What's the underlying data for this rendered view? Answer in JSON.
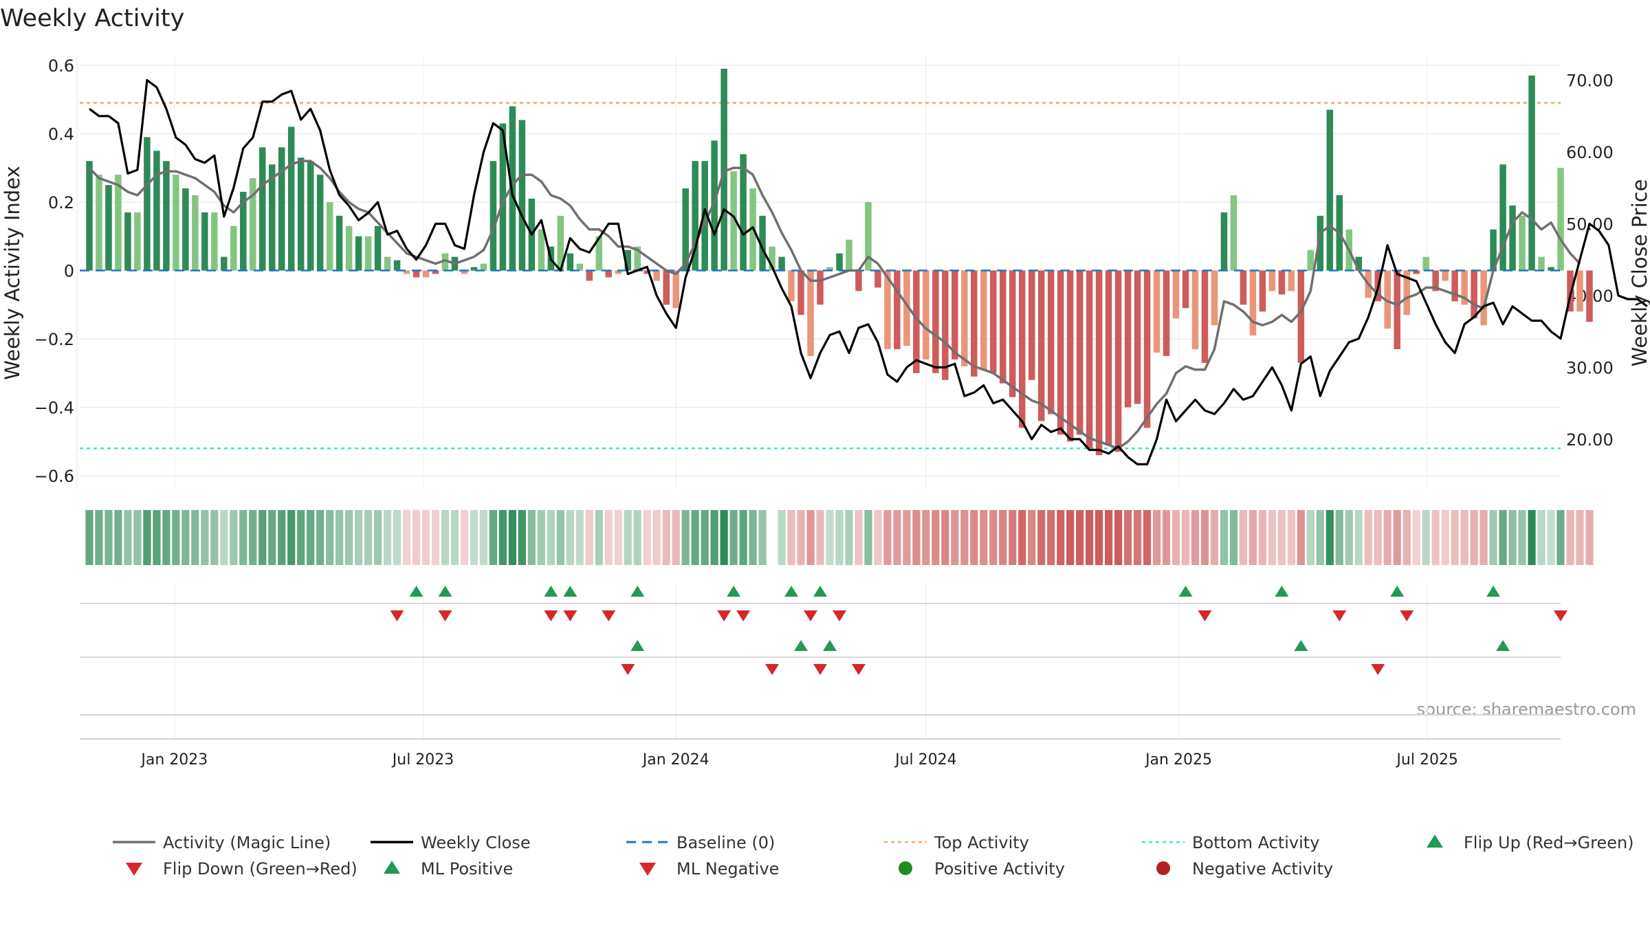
{
  "chart_data": {
    "type": "bar",
    "title": "Weekly Activity",
    "ylabel": "Weekly Activity Index",
    "y2label": "Weekly Close Price",
    "ylim": [
      -0.64,
      0.63
    ],
    "y2lim": [
      13.0,
      73.5
    ],
    "xlim": [
      "2022-10-24",
      "2025-10-06"
    ],
    "y_ticks": [
      {
        "v": 0.6,
        "label": "0.6"
      },
      {
        "v": 0.4,
        "label": "0.4"
      },
      {
        "v": 0.2,
        "label": "0.2"
      },
      {
        "v": 0,
        "label": "0"
      },
      {
        "v": -0.2,
        "label": "−0.2"
      },
      {
        "v": -0.4,
        "label": "−0.4"
      },
      {
        "v": -0.6,
        "label": "−0.6"
      }
    ],
    "y2_ticks": [
      {
        "v": 70,
        "label": "70.00"
      },
      {
        "v": 60,
        "label": "60.00"
      },
      {
        "v": 50,
        "label": "50.00"
      },
      {
        "v": 40,
        "label": "40.00"
      },
      {
        "v": 30,
        "label": "30.00"
      },
      {
        "v": 20,
        "label": "20.00"
      }
    ],
    "x_ticks": [
      {
        "date": "2023-01-01",
        "label": "Jan 2023"
      },
      {
        "date": "2023-07-01",
        "label": "Jul 2023"
      },
      {
        "date": "2024-01-01",
        "label": "Jan 2024"
      },
      {
        "date": "2024-07-01",
        "label": "Jul 2024"
      },
      {
        "date": "2025-01-01",
        "label": "Jan 2025"
      },
      {
        "date": "2025-07-01",
        "label": "Jul 2025"
      }
    ],
    "start_date": "2022-10-31",
    "week_days": 7,
    "activity": [
      0.32,
      0.28,
      0.25,
      0.28,
      0.17,
      0.17,
      0.39,
      0.35,
      0.32,
      0.28,
      0.24,
      0.22,
      0.17,
      0.17,
      0.04,
      0.13,
      0.23,
      0.27,
      0.36,
      0.31,
      0.36,
      0.42,
      0.33,
      0.32,
      0.28,
      0.2,
      0.16,
      0.13,
      0.1,
      0.1,
      0.13,
      0.04,
      0.03,
      -0.01,
      -0.02,
      -0.02,
      -0.01,
      0.05,
      0.04,
      -0.01,
      0.01,
      0.02,
      0.32,
      0.43,
      0.48,
      0.44,
      0.21,
      0.12,
      0.07,
      0.16,
      0.05,
      0.02,
      -0.03,
      0.1,
      -0.02,
      -0.01,
      0.06,
      0.07,
      -0.01,
      -0.03,
      -0.1,
      -0.11,
      0.24,
      0.32,
      0.32,
      0.38,
      0.59,
      0.29,
      0.34,
      0.24,
      0.16,
      0.07,
      0.04,
      -0.09,
      -0.13,
      -0.25,
      -0.1,
      0.01,
      0.05,
      0.09,
      -0.06,
      0.2,
      -0.05,
      -0.23,
      -0.23,
      -0.22,
      -0.3,
      -0.26,
      -0.3,
      -0.32,
      -0.26,
      -0.28,
      -0.31,
      -0.29,
      -0.3,
      -0.33,
      -0.37,
      -0.46,
      -0.32,
      -0.44,
      -0.42,
      -0.48,
      -0.5,
      -0.48,
      -0.52,
      -0.54,
      -0.51,
      -0.53,
      -0.4,
      -0.39,
      -0.46,
      -0.24,
      -0.25,
      -0.14,
      -0.11,
      -0.23,
      -0.27,
      -0.16,
      0.17,
      0.22,
      -0.1,
      -0.19,
      -0.12,
      -0.06,
      -0.07,
      -0.06,
      -0.27,
      0.06,
      0.16,
      0.47,
      0.22,
      0.12,
      0.04,
      -0.08,
      -0.09,
      -0.17,
      -0.23,
      -0.13,
      -0.01,
      0.04,
      -0.06,
      -0.03,
      -0.09,
      -0.1,
      -0.14,
      -0.16,
      0.12,
      0.31,
      0.19,
      0.16,
      0.57,
      0.04,
      0.01,
      0.3,
      -0.12,
      -0.12,
      -0.15
    ],
    "activity_line": [
      0.3,
      0.27,
      0.26,
      0.25,
      0.23,
      0.22,
      0.25,
      0.28,
      0.29,
      0.29,
      0.28,
      0.27,
      0.25,
      0.23,
      0.19,
      0.17,
      0.2,
      0.22,
      0.25,
      0.27,
      0.29,
      0.31,
      0.32,
      0.32,
      0.3,
      0.27,
      0.23,
      0.2,
      0.18,
      0.17,
      0.14,
      0.11,
      0.08,
      0.05,
      0.04,
      0.03,
      0.02,
      0.03,
      0.02,
      0.03,
      0.04,
      0.06,
      0.12,
      0.2,
      0.25,
      0.28,
      0.28,
      0.26,
      0.22,
      0.21,
      0.19,
      0.15,
      0.12,
      0.12,
      0.1,
      0.07,
      0.07,
      0.06,
      0.04,
      0.02,
      0.0,
      -0.01,
      0.02,
      0.08,
      0.14,
      0.2,
      0.29,
      0.3,
      0.3,
      0.28,
      0.22,
      0.17,
      0.11,
      0.06,
      0.0,
      -0.03,
      -0.03,
      -0.02,
      -0.01,
      0.0,
      0.0,
      0.04,
      0.02,
      -0.02,
      -0.06,
      -0.1,
      -0.14,
      -0.17,
      -0.19,
      -0.21,
      -0.24,
      -0.26,
      -0.28,
      -0.29,
      -0.3,
      -0.32,
      -0.34,
      -0.36,
      -0.38,
      -0.39,
      -0.41,
      -0.43,
      -0.45,
      -0.47,
      -0.49,
      -0.5,
      -0.51,
      -0.52,
      -0.5,
      -0.47,
      -0.43,
      -0.39,
      -0.36,
      -0.3,
      -0.28,
      -0.29,
      -0.29,
      -0.23,
      -0.09,
      -0.1,
      -0.12,
      -0.15,
      -0.16,
      -0.15,
      -0.13,
      -0.15,
      -0.12,
      -0.06,
      0.11,
      0.13,
      0.11,
      0.06,
      0.0,
      -0.04,
      -0.07,
      -0.09,
      -0.1,
      -0.08,
      -0.07,
      -0.05,
      -0.05,
      -0.06,
      -0.07,
      -0.08,
      -0.1,
      -0.11,
      0.0,
      0.07,
      0.14,
      0.17,
      0.15,
      0.12,
      0.14,
      0.09,
      0.05,
      0.02
    ],
    "close": [
      66.0,
      65.0,
      65.0,
      64.0,
      57.0,
      57.5,
      70.0,
      69.0,
      66.0,
      62.0,
      61.0,
      59.0,
      58.5,
      59.5,
      51.0,
      55.0,
      60.5,
      62.0,
      67.0,
      67.0,
      68.0,
      68.5,
      64.5,
      66.0,
      63.0,
      57.5,
      54.0,
      52.5,
      50.5,
      51.5,
      53.0,
      48.5,
      49.0,
      46.5,
      45.0,
      47.0,
      50.0,
      50.0,
      47.0,
      46.5,
      54.0,
      60.0,
      64.0,
      63.0,
      54.0,
      51.0,
      48.5,
      50.5,
      45.0,
      43.5,
      48.0,
      46.5,
      46.0,
      48.0,
      50.0,
      50.0,
      43.0,
      43.5,
      44.0,
      40.0,
      37.5,
      35.5,
      42.5,
      46.5,
      52.0,
      48.5,
      52.0,
      51.0,
      48.5,
      49.5,
      46.5,
      44.0,
      41.0,
      38.5,
      32.0,
      28.5,
      32.0,
      34.5,
      35.0,
      32.0,
      35.5,
      36.0,
      33.5,
      29.0,
      28.0,
      30.0,
      31.0,
      30.5,
      30.0,
      30.0,
      30.5,
      26.0,
      26.5,
      27.5,
      25.0,
      25.5,
      24.0,
      22.5,
      20.0,
      22.0,
      21.0,
      21.5,
      20.0,
      20.0,
      18.5,
      18.5,
      18.0,
      19.0,
      17.5,
      16.5,
      16.5,
      20.0,
      25.5,
      22.5,
      24.0,
      25.5,
      24.0,
      23.5,
      25.0,
      27.0,
      25.5,
      26.0,
      28.0,
      30.0,
      27.5,
      24.0,
      30.5,
      31.5,
      26.0,
      29.5,
      31.5,
      33.5,
      34.0,
      37.0,
      41.0,
      47.0,
      43.0,
      42.5,
      42.0,
      39.0,
      36.0,
      33.5,
      32.0,
      36.0,
      37.0,
      38.5,
      39.0,
      36.0,
      38.5,
      37.5,
      36.5,
      36.5,
      35.0,
      34.0,
      40.0,
      45.0,
      50.0,
      49.0,
      47.0,
      40.0,
      39.5,
      39.5,
      38.5
    ],
    "barcode_gap_weeks": [
      71
    ],
    "baseline": 0,
    "top_activity": 0.49,
    "bottom_activity": -0.52,
    "flip_up_weeks": [
      34,
      37,
      48,
      50,
      57,
      67,
      73,
      76,
      114,
      124,
      136,
      146
    ],
    "flip_down_weeks": [
      32,
      37,
      48,
      50,
      54,
      66,
      68,
      75,
      78,
      116,
      130,
      137,
      153
    ],
    "ml_positive_weeks": [
      57,
      74,
      77,
      126,
      147
    ],
    "ml_negative_weeks": [
      56,
      71,
      76,
      80,
      134
    ],
    "source_note": "source: sharemaestro.com",
    "colors": {
      "pos_strong": "#2e8b57",
      "pos_weak": "#84c584",
      "neg_strong": "#cd5c5c",
      "neg_weak": "#e9967a",
      "activity_line": "#707070",
      "close_line": "#000000",
      "baseline": "#1f77b4",
      "top": "#f4a460",
      "bottom": "#40e0d0",
      "marker_up": "#229954",
      "marker_down": "#d62728",
      "positive_dot": "#228b22",
      "negative_dot": "#b22222"
    },
    "legend": [
      {
        "key": "magic",
        "label": "Activity (Magic Line)",
        "kind": "line",
        "color": "#707070"
      },
      {
        "key": "close",
        "label": "Weekly Close",
        "kind": "line",
        "color": "#000000"
      },
      {
        "key": "baseline",
        "label": "Baseline (0)",
        "kind": "dash",
        "color": "#1f77b4"
      },
      {
        "key": "top",
        "label": "Top Activity",
        "kind": "dot",
        "color": "#f4a460"
      },
      {
        "key": "bottom",
        "label": "Bottom Activity",
        "kind": "dot",
        "color": "#40e0d0"
      },
      {
        "key": "flip-up",
        "label": "Flip Up (Red→Green)",
        "kind": "tri-up",
        "color": "#229954"
      },
      {
        "key": "flip-down",
        "label": "Flip Down (Green→Red)",
        "kind": "tri-down",
        "color": "#d62728"
      },
      {
        "key": "ml-positive",
        "label": "ML Positive",
        "kind": "tri-up",
        "color": "#229954"
      },
      {
        "key": "ml-negative",
        "label": "ML Negative",
        "kind": "tri-down",
        "color": "#d62728"
      },
      {
        "key": "positive",
        "label": "Positive Activity",
        "kind": "circle",
        "color": "#228b22"
      },
      {
        "key": "negative",
        "label": "Negative Activity",
        "kind": "circle",
        "color": "#b22222"
      }
    ]
  }
}
